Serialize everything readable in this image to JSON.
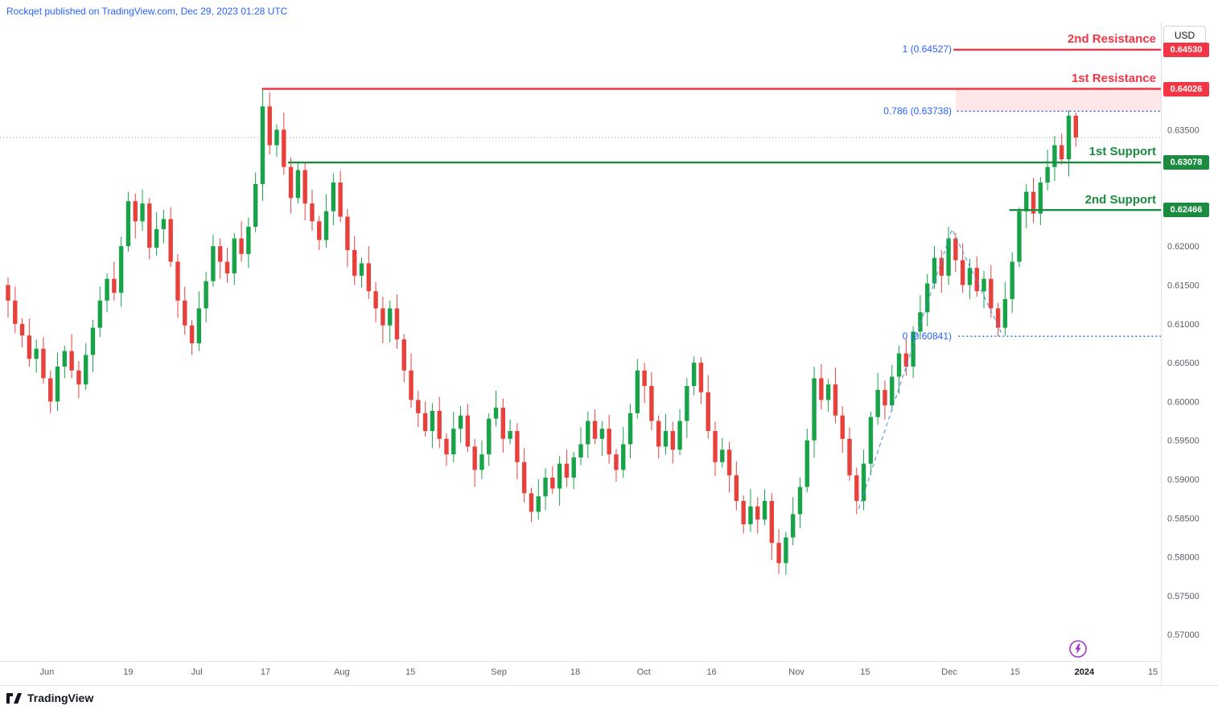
{
  "header": {
    "publish_text": "Rockqet published on TradingView.com, Dec 29, 2023 01:28 UTC"
  },
  "currency_button": {
    "label": "USD"
  },
  "footer": {
    "brand": "TradingView"
  },
  "chart_data": {
    "type": "candlestick",
    "quote_currency": "USD",
    "ylim": [
      0.5666,
      0.6488
    ],
    "x0": 10,
    "dx": 8.79,
    "up_color": "#18A349",
    "down_color": "#E8413C",
    "fib_color": "#2962FF",
    "last_price_line_color": "#9598A1",
    "price_ticks": [
      {
        "label": "0.63500",
        "value": 0.635
      },
      {
        "label": "0.62000",
        "value": 0.62
      },
      {
        "label": "0.61500",
        "value": 0.615
      },
      {
        "label": "0.61000",
        "value": 0.61
      },
      {
        "label": "0.60500",
        "value": 0.605
      },
      {
        "label": "0.60000",
        "value": 0.6
      },
      {
        "label": "0.59500",
        "value": 0.595
      },
      {
        "label": "0.59000",
        "value": 0.59
      },
      {
        "label": "0.58500",
        "value": 0.585
      },
      {
        "label": "0.58000",
        "value": 0.58
      },
      {
        "label": "0.57500",
        "value": 0.575
      },
      {
        "label": "0.57000",
        "value": 0.57
      }
    ],
    "time_ticks": [
      {
        "label": "Jun",
        "i": 5.5,
        "bold": false
      },
      {
        "label": "19",
        "i": 17.0,
        "bold": false
      },
      {
        "label": "Jul",
        "i": 26.7,
        "bold": false
      },
      {
        "label": "17",
        "i": 36.4,
        "bold": false
      },
      {
        "label": "Aug",
        "i": 47.2,
        "bold": false
      },
      {
        "label": "15",
        "i": 56.9,
        "bold": false
      },
      {
        "label": "Sep",
        "i": 69.4,
        "bold": false
      },
      {
        "label": "18",
        "i": 80.2,
        "bold": false
      },
      {
        "label": "Oct",
        "i": 89.9,
        "bold": false
      },
      {
        "label": "16",
        "i": 99.5,
        "bold": false
      },
      {
        "label": "Nov",
        "i": 111.5,
        "bold": false
      },
      {
        "label": "15",
        "i": 121.2,
        "bold": false
      },
      {
        "label": "Dec",
        "i": 133.1,
        "bold": false
      },
      {
        "label": "15",
        "i": 142.4,
        "bold": false
      },
      {
        "label": "2024",
        "i": 152.2,
        "bold": true
      },
      {
        "label": "15",
        "i": 161.9,
        "bold": false
      }
    ],
    "first_open": 0.615,
    "closes": [
      0.613,
      0.61,
      0.6085,
      0.6055,
      0.6068,
      0.603,
      0.6,
      0.6045,
      0.6065,
      0.604,
      0.6022,
      0.606,
      0.6095,
      0.613,
      0.6158,
      0.614,
      0.62,
      0.6258,
      0.6232,
      0.6255,
      0.6198,
      0.6222,
      0.6235,
      0.618,
      0.613,
      0.6098,
      0.6075,
      0.612,
      0.6155,
      0.62,
      0.618,
      0.6165,
      0.621,
      0.619,
      0.6225,
      0.628,
      0.638,
      0.633,
      0.635,
      0.6302,
      0.6262,
      0.6298,
      0.6255,
      0.6232,
      0.6208,
      0.6245,
      0.6282,
      0.6238,
      0.6195,
      0.6162,
      0.6178,
      0.6142,
      0.612,
      0.6098,
      0.612,
      0.608,
      0.604,
      0.6002,
      0.5985,
      0.5962,
      0.5988,
      0.5952,
      0.5932,
      0.5965,
      0.5982,
      0.5942,
      0.5912,
      0.5932,
      0.5978,
      0.5992,
      0.5952,
      0.5962,
      0.5922,
      0.5882,
      0.5858,
      0.5878,
      0.5902,
      0.5888,
      0.592,
      0.5902,
      0.5928,
      0.5945,
      0.5975,
      0.5952,
      0.5965,
      0.5932,
      0.5912,
      0.5945,
      0.5985,
      0.604,
      0.602,
      0.5975,
      0.5942,
      0.5962,
      0.5938,
      0.5975,
      0.602,
      0.605,
      0.6012,
      0.5962,
      0.5922,
      0.5938,
      0.5905,
      0.5872,
      0.5842,
      0.5865,
      0.5848,
      0.5872,
      0.5818,
      0.5792,
      0.5825,
      0.5855,
      0.589,
      0.595,
      0.603,
      0.6002,
      0.6022,
      0.5982,
      0.5952,
      0.5905,
      0.5872,
      0.592,
      0.598,
      0.6015,
      0.5995,
      0.6032,
      0.6062,
      0.6045,
      0.609,
      0.6115,
      0.6152,
      0.6185,
      0.6162,
      0.621,
      0.6182,
      0.615,
      0.6172,
      0.6142,
      0.6158,
      0.612,
      0.6095,
      0.6132,
      0.618,
      0.6245,
      0.627,
      0.6242,
      0.6282,
      0.6302,
      0.633,
      0.6312,
      0.6368,
      0.634
    ],
    "wick_pattern": [
      0.001,
      0.0018,
      0.0007,
      0.0022,
      0.0012,
      0.0015
    ],
    "wick_overrides": {
      "6": {
        "low": 0.5985
      },
      "17": {
        "high": 0.627
      },
      "36": {
        "high": 0.6403
      },
      "40": {
        "low": 0.6242
      },
      "41": {
        "high": 0.6308
      },
      "44": {
        "low": 0.6195
      },
      "53": {
        "low": 0.6075
      },
      "74": {
        "low": 0.5845
      },
      "97": {
        "high": 0.6058
      },
      "104": {
        "low": 0.583
      },
      "109": {
        "low": 0.5778
      },
      "114": {
        "high": 0.6045
      },
      "120": {
        "low": 0.5855
      },
      "133": {
        "high": 0.6225
      },
      "140": {
        "low": 0.6084
      },
      "143": {
        "high": 0.625
      },
      "150": {
        "high": 0.6375
      },
      "151": {
        "high": 0.6372
      }
    },
    "levels": [
      {
        "id": "resistance-2",
        "label": "2nd Resistance",
        "display": "0.64530",
        "price": 0.6453,
        "start_i": 133.7,
        "color": "#F23645"
      },
      {
        "id": "resistance-1",
        "label": "1st Resistance",
        "display": "0.64026",
        "price": 0.64026,
        "start_i": 35.9,
        "color": "#F23645"
      },
      {
        "id": "support-1",
        "label": "1st Support",
        "display": "0.63078",
        "price": 0.63078,
        "start_i": 39.6,
        "color": "#1B8C3F"
      },
      {
        "id": "support-2",
        "label": "2nd Support",
        "display": "0.62466",
        "price": 0.62466,
        "start_i": 141.6,
        "color": "#1B8C3F"
      }
    ],
    "fib_levels": [
      {
        "label": "1 (0.64527)",
        "price": 0.64527,
        "dotted": false,
        "start_i": 133.7
      },
      {
        "label": "0.786 (0.63738)",
        "price": 0.63738,
        "dotted": true,
        "start_i": 134.2
      },
      {
        "label": "0 (0.60841)",
        "price": 0.60841,
        "dotted": true,
        "start_i": 134.4
      }
    ],
    "zone": {
      "top": 0.64026,
      "bottom": 0.63738,
      "start_i": 134.0,
      "fill": "rgba(242,54,69,0.12)"
    },
    "trendline": {
      "color": "#4A90E2",
      "points": [
        {
          "i": 120.3,
          "price": 0.5862
        },
        {
          "i": 133.5,
          "price": 0.6222
        },
        {
          "i": 140.6,
          "price": 0.6086
        }
      ]
    }
  }
}
